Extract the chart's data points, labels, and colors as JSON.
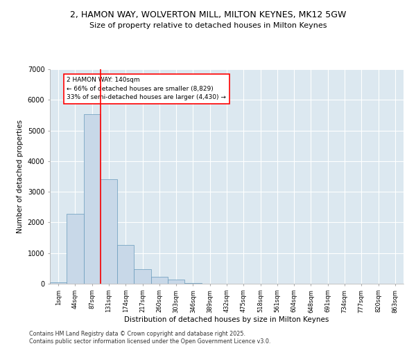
{
  "title1": "2, HAMON WAY, WOLVERTON MILL, MILTON KEYNES, MK12 5GW",
  "title2": "Size of property relative to detached houses in Milton Keynes",
  "xlabel": "Distribution of detached houses by size in Milton Keynes",
  "ylabel": "Number of detached properties",
  "categories": [
    "1sqm",
    "44sqm",
    "87sqm",
    "131sqm",
    "174sqm",
    "217sqm",
    "260sqm",
    "303sqm",
    "346sqm",
    "389sqm",
    "432sqm",
    "475sqm",
    "518sqm",
    "561sqm",
    "604sqm",
    "648sqm",
    "691sqm",
    "734sqm",
    "777sqm",
    "820sqm",
    "863sqm"
  ],
  "values": [
    50,
    2280,
    5530,
    3420,
    1270,
    480,
    230,
    130,
    30,
    10,
    5,
    0,
    0,
    0,
    0,
    0,
    0,
    0,
    0,
    0,
    0
  ],
  "bar_color": "#c8d8e8",
  "bar_edge_color": "#6699bb",
  "vline_color": "red",
  "annotation_text": "2 HAMON WAY: 140sqm\n← 66% of detached houses are smaller (8,829)\n33% of semi-detached houses are larger (4,430) →",
  "ylim": [
    0,
    7000
  ],
  "yticks": [
    0,
    1000,
    2000,
    3000,
    4000,
    5000,
    6000,
    7000
  ],
  "grid_color": "#c8d8e8",
  "background_color": "#dce8f0",
  "footer_text": "Contains HM Land Registry data © Crown copyright and database right 2025.\nContains public sector information licensed under the Open Government Licence v3.0."
}
